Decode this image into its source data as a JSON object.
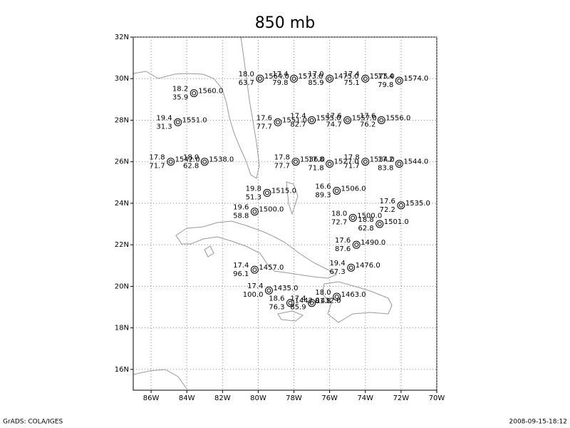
{
  "title": "850 mb",
  "map": {
    "lonlim": [
      -87,
      -70
    ],
    "latlim": [
      15,
      32
    ],
    "lonticks": [
      {
        "value": -86,
        "label": "86W"
      },
      {
        "value": -84,
        "label": "84W"
      },
      {
        "value": -82,
        "label": "82W"
      },
      {
        "value": -80,
        "label": "80W"
      },
      {
        "value": -78,
        "label": "78W"
      },
      {
        "value": -76,
        "label": "76W"
      },
      {
        "value": -74,
        "label": "74W"
      },
      {
        "value": -72,
        "label": "72W"
      },
      {
        "value": -70,
        "label": "70W"
      }
    ],
    "latticks": [
      {
        "value": 16,
        "label": "16N"
      },
      {
        "value": 18,
        "label": "18N"
      },
      {
        "value": 20,
        "label": "20N"
      },
      {
        "value": 22,
        "label": "22N"
      },
      {
        "value": 24,
        "label": "24N"
      },
      {
        "value": 26,
        "label": "26N"
      },
      {
        "value": 28,
        "label": "28N"
      },
      {
        "value": 30,
        "label": "30N"
      },
      {
        "value": 32,
        "label": "32N"
      }
    ],
    "stations": [
      {
        "lon": -79.9,
        "lat": 30.0,
        "t": "18.0",
        "td": "63.7",
        "h": "1564.0"
      },
      {
        "lon": -78.0,
        "lat": 30.0,
        "t": "17.4",
        "td": "79.8",
        "h": "1573.0"
      },
      {
        "lon": -76.0,
        "lat": 30.0,
        "t": "17.0",
        "td": "85.9",
        "h": "1475.0"
      },
      {
        "lon": -74.0,
        "lat": 30.0,
        "t": "17.4",
        "td": "75.1",
        "h": "1575.0"
      },
      {
        "lon": -72.1,
        "lat": 29.9,
        "t": "17.4",
        "td": "79.8",
        "h": "1574.0"
      },
      {
        "lon": -83.6,
        "lat": 29.3,
        "t": "18.2",
        "td": "35.9",
        "h": "1560.0"
      },
      {
        "lon": -84.5,
        "lat": 27.9,
        "t": "19.4",
        "td": "31.3",
        "h": "1551.0"
      },
      {
        "lon": -78.9,
        "lat": 27.9,
        "t": "17.6",
        "td": "77.7",
        "h": "1551.0"
      },
      {
        "lon": -77.0,
        "lat": 28.0,
        "t": "17.4",
        "td": "82.7",
        "h": "1555.0"
      },
      {
        "lon": -75.0,
        "lat": 28.0,
        "t": "17.6",
        "td": "74.7",
        "h": "1557.0"
      },
      {
        "lon": -73.1,
        "lat": 28.0,
        "t": "17.6",
        "td": "76.2",
        "h": "1556.0"
      },
      {
        "lon": -84.9,
        "lat": 26.0,
        "t": "17.8",
        "td": "71.7",
        "h": "1542.0"
      },
      {
        "lon": -83.0,
        "lat": 26.0,
        "t": "18.0",
        "td": "62.8",
        "h": "1538.0"
      },
      {
        "lon": -77.9,
        "lat": 26.0,
        "t": "17.8",
        "td": "77.7",
        "h": "1536.0"
      },
      {
        "lon": -76.0,
        "lat": 25.9,
        "t": "17.8",
        "td": "71.8",
        "h": "1527.0"
      },
      {
        "lon": -74.0,
        "lat": 26.0,
        "t": "17.8",
        "td": "71.7",
        "h": "1534.0"
      },
      {
        "lon": -72.1,
        "lat": 25.9,
        "t": "17.2",
        "td": "83.8",
        "h": "1544.0"
      },
      {
        "lon": -79.5,
        "lat": 24.5,
        "t": "19.8",
        "td": "51.3",
        "h": "1515.0"
      },
      {
        "lon": -75.6,
        "lat": 24.6,
        "t": "16.6",
        "td": "89.3",
        "h": "1506.0"
      },
      {
        "lon": -80.2,
        "lat": 23.6,
        "t": "19.6",
        "td": "58.8",
        "h": "1500.0"
      },
      {
        "lon": -72.0,
        "lat": 23.9,
        "t": "17.6",
        "td": "72.2",
        "h": "1535.0"
      },
      {
        "lon": -74.7,
        "lat": 23.3,
        "t": "18.0",
        "td": "72.7",
        "h": "1500.0"
      },
      {
        "lon": -73.2,
        "lat": 23.0,
        "t": "18.8",
        "td": "62.8",
        "h": "1501.0"
      },
      {
        "lon": -74.5,
        "lat": 22.0,
        "t": "17.6",
        "td": "87.6",
        "h": "1490.0"
      },
      {
        "lon": -80.2,
        "lat": 20.8,
        "t": "17.4",
        "td": "96.1",
        "h": "1457.0"
      },
      {
        "lon": -74.8,
        "lat": 20.9,
        "t": "19.4",
        "td": "67.3",
        "h": "1476.0"
      },
      {
        "lon": -79.4,
        "lat": 19.8,
        "t": "17.4",
        "td": "100.0",
        "h": "1435.0"
      },
      {
        "lon": -78.2,
        "lat": 19.2,
        "t": "18.6",
        "td": "76.3",
        "h": "1442.0"
      },
      {
        "lon": -77.0,
        "lat": 19.2,
        "t": "17.4",
        "td": "85.9",
        "h": "1432.0"
      },
      {
        "lon": -75.6,
        "lat": 19.5,
        "t": "18.0",
        "td": "81.8",
        "h": "1463.0"
      }
    ]
  },
  "footer": {
    "left": "GrADS: COLA/IGES",
    "right": "2008-09-15-18:12"
  }
}
